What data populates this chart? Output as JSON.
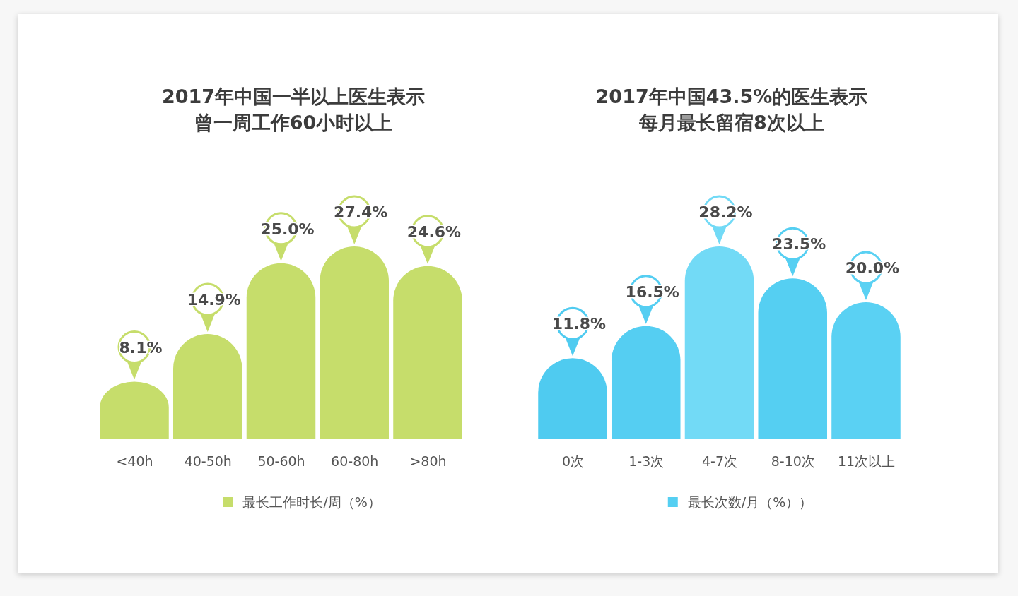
{
  "chart_data": [
    {
      "type": "bar",
      "title": "2017年中国一半以上医生表示曾一周工作60小时以上",
      "categories": [
        "<40h",
        "40-50h",
        "50-60h",
        "60-80h",
        ">80h"
      ],
      "series": [
        {
          "name": "最长工作时长/周（%）",
          "color": "#c6dd6b",
          "values": [
            8.1,
            14.9,
            25.0,
            27.4,
            24.6
          ],
          "value_labels": [
            "8.1%",
            "14.9%",
            "25.0%",
            "27.4%",
            "24.6%"
          ]
        }
      ],
      "legend": "bottom",
      "tick_labels": "x"
    },
    {
      "type": "bar",
      "title": "2017年中国43.5%的医生表示每月最长留宿8次以上",
      "categories": [
        "0次",
        "1-3次",
        "4-7次",
        "8-10次",
        "11次以上"
      ],
      "series": [
        {
          "name": "最长次数/月（%））",
          "color": "#55cff2",
          "colors": [
            "#4fcbf0",
            "#55cef2",
            "#72daf6",
            "#55cff2",
            "#5ad1f3"
          ],
          "values": [
            11.8,
            16.5,
            28.2,
            23.5,
            20.0
          ],
          "value_labels": [
            "11.8%",
            "16.5%",
            "28.2%",
            "23.5%",
            "20.0%"
          ]
        }
      ],
      "legend": "bottom",
      "tick_labels": "x"
    }
  ]
}
